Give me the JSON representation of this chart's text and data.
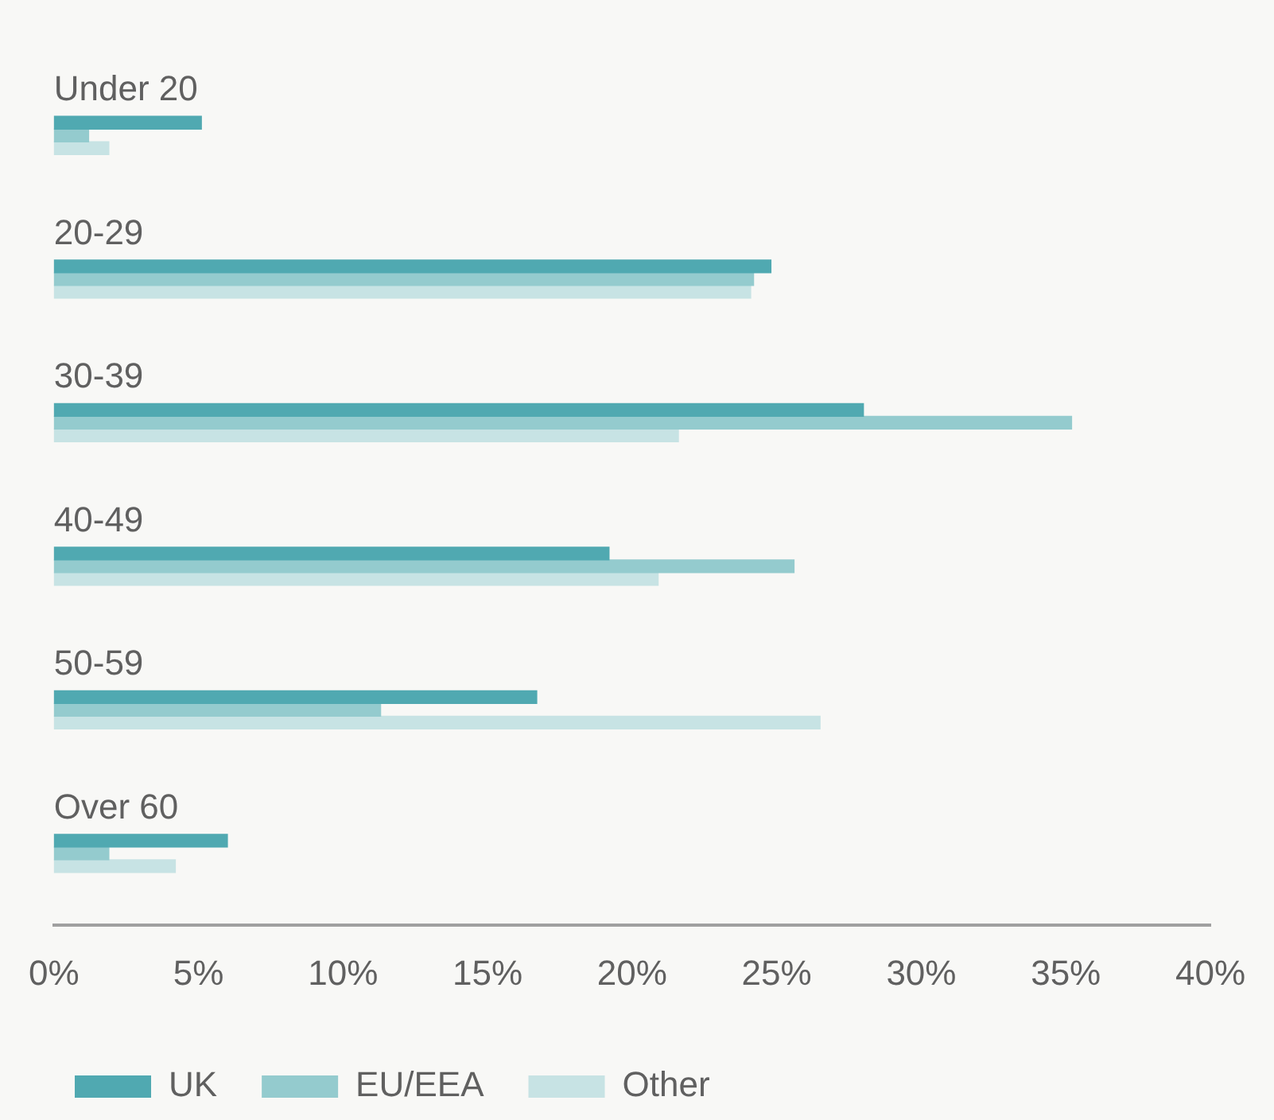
{
  "chart_data": {
    "type": "bar",
    "orientation": "horizontal",
    "categories": [
      "Under 20",
      "20-29",
      "30-39",
      "40-49",
      "50-59",
      "Over 60"
    ],
    "series": [
      {
        "name": "UK",
        "color": "#50a9b1",
        "values": [
          5.1,
          24.8,
          28.0,
          19.2,
          16.7,
          6.0
        ]
      },
      {
        "name": "EU/EEA",
        "color": "#94cbce",
        "values": [
          1.2,
          24.2,
          35.2,
          25.6,
          11.3,
          1.9
        ]
      },
      {
        "name": "Other",
        "color": "#c7e3e4",
        "values": [
          1.9,
          24.1,
          21.6,
          20.9,
          26.5,
          4.2
        ]
      }
    ],
    "xlim": [
      0,
      40
    ],
    "xticks": [
      {
        "value": 0,
        "label": "0%"
      },
      {
        "value": 5,
        "label": "5%"
      },
      {
        "value": 10,
        "label": "10%"
      },
      {
        "value": 15,
        "label": "15%"
      },
      {
        "value": 20,
        "label": "20%"
      },
      {
        "value": 25,
        "label": "25%"
      },
      {
        "value": 30,
        "label": "30%"
      },
      {
        "value": 35,
        "label": "35%"
      },
      {
        "value": 40,
        "label": "40%"
      }
    ],
    "grid": false,
    "legend": "bottom left"
  }
}
